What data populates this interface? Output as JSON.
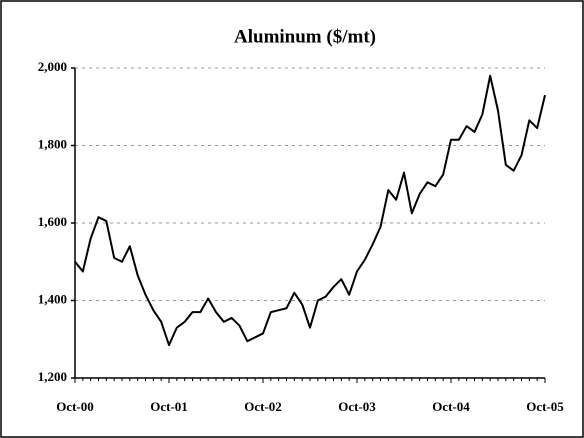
{
  "chart_data": {
    "type": "line",
    "title": "Aluminum ($/mt)",
    "categories": [
      "Oct-00",
      null,
      null,
      null,
      null,
      null,
      null,
      null,
      null,
      null,
      null,
      null,
      "Oct-01",
      null,
      null,
      null,
      null,
      null,
      null,
      null,
      null,
      null,
      null,
      null,
      "Oct-02",
      null,
      null,
      null,
      null,
      null,
      null,
      null,
      null,
      null,
      null,
      null,
      "Oct-03",
      null,
      null,
      null,
      null,
      null,
      null,
      null,
      null,
      null,
      null,
      null,
      "Oct-04",
      null,
      null,
      null,
      null,
      null,
      null,
      null,
      null,
      null,
      null,
      null,
      "Oct-05"
    ],
    "values": [
      1500,
      1475,
      1560,
      1615,
      1605,
      1510,
      1500,
      1540,
      1465,
      1415,
      1375,
      1345,
      1285,
      1330,
      1345,
      1370,
      1370,
      1405,
      1370,
      1345,
      1355,
      1335,
      1295,
      1305,
      1315,
      1370,
      1375,
      1380,
      1420,
      1390,
      1330,
      1400,
      1410,
      1435,
      1455,
      1415,
      1475,
      1505,
      1545,
      1590,
      1685,
      1660,
      1730,
      1625,
      1675,
      1705,
      1695,
      1725,
      1815,
      1815,
      1850,
      1835,
      1880,
      1980,
      1890,
      1750,
      1735,
      1775,
      1865,
      1845,
      1930
    ],
    "color": "#000000",
    "ylim": [
      1200,
      2000
    ],
    "yticks": [
      {
        "value": 1200,
        "label": "1,200"
      },
      {
        "value": 1400,
        "label": "1,400"
      },
      {
        "value": 1600,
        "label": "1,600"
      },
      {
        "value": 1800,
        "label": "1,800"
      },
      {
        "value": 2000,
        "label": "2,000"
      }
    ],
    "grid": true
  }
}
